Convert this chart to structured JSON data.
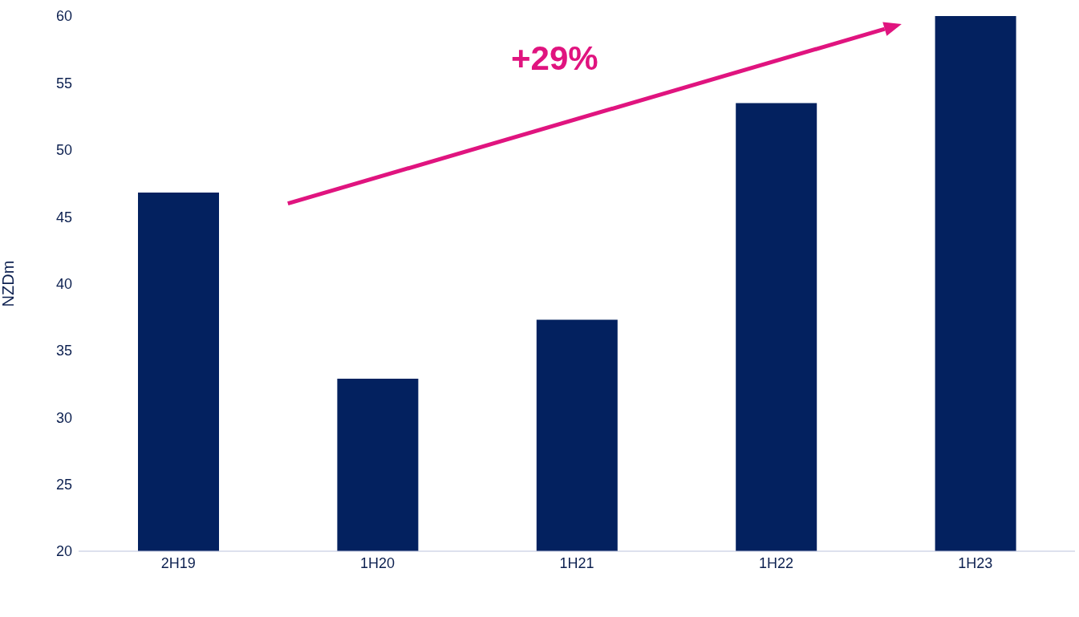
{
  "chart_data": {
    "type": "bar",
    "ylabel": "NZDm",
    "categories": [
      "2H19",
      "1H20",
      "1H21",
      "1H22",
      "1H23"
    ],
    "values": [
      46.8,
      32.9,
      37.3,
      53.5,
      60
    ],
    "color": "#03215f",
    "ylim": [
      20,
      60
    ],
    "yticks": [
      20,
      25,
      30,
      35,
      40,
      45,
      50,
      55,
      60
    ],
    "annotations": [
      "+29%"
    ]
  }
}
